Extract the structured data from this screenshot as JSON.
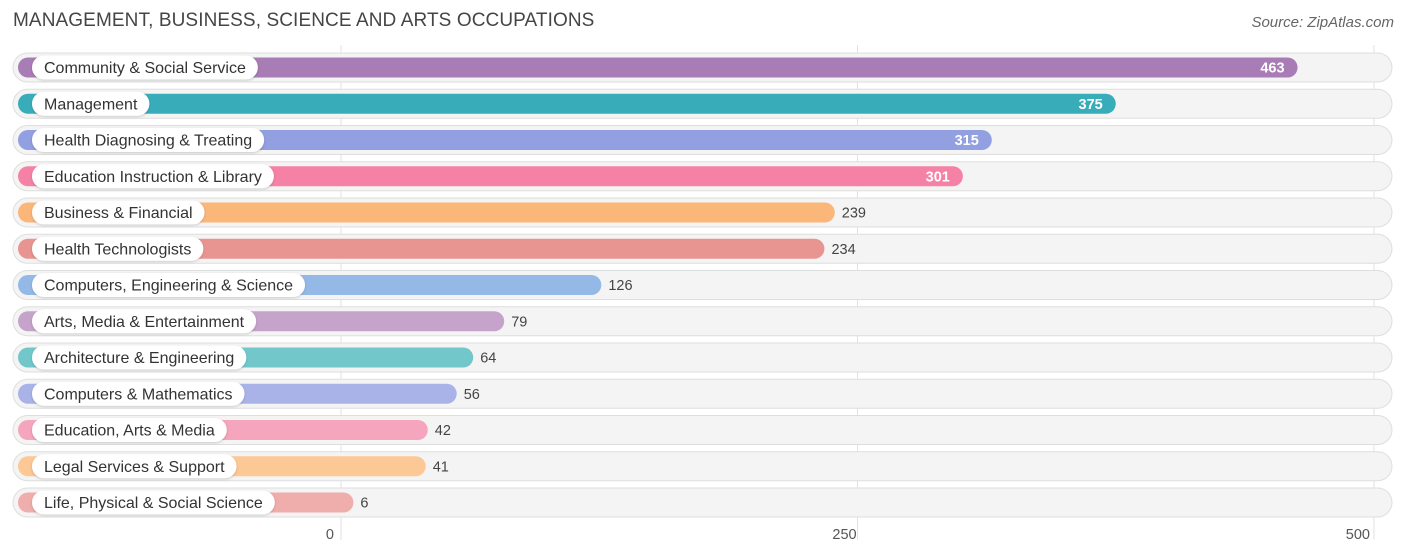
{
  "header": {
    "title": "MANAGEMENT, BUSINESS, SCIENCE AND ARTS OCCUPATIONS",
    "source": "Source: ZipAtlas.com"
  },
  "chart_data": {
    "type": "bar",
    "orientation": "horizontal",
    "title": "MANAGEMENT, BUSINESS, SCIENCE AND ARTS OCCUPATIONS",
    "xlim": [
      0,
      500
    ],
    "xticks": [
      0,
      250,
      500
    ],
    "grid": true,
    "categories": [
      "Community & Social Service",
      "Management",
      "Health Diagnosing & Treating",
      "Education Instruction & Library",
      "Business & Financial",
      "Health Technologists",
      "Computers, Engineering & Science",
      "Arts, Media & Entertainment",
      "Architecture & Engineering",
      "Computers & Mathematics",
      "Education, Arts & Media",
      "Legal Services & Support",
      "Life, Physical & Social Science"
    ],
    "values": [
      463,
      375,
      315,
      301,
      239,
      234,
      126,
      79,
      64,
      56,
      42,
      41,
      6
    ],
    "colors": [
      "#a87cb4",
      "#38adb9",
      "#929fe0",
      "#f582a6",
      "#fbb67a",
      "#e89591",
      "#94b9e7",
      "#c5a3cb",
      "#72c7cb",
      "#aab3e8",
      "#f6a5be",
      "#fbc896",
      "#efadab"
    ]
  }
}
